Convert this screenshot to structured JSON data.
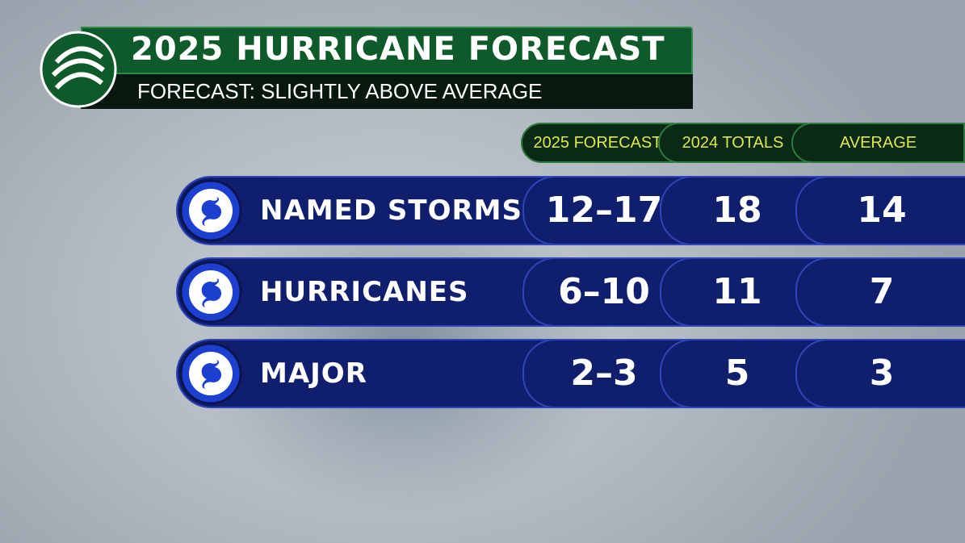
{
  "header": {
    "title": "2025 HURRICANE FORECAST",
    "subtitle": "FORECAST: SLIGHTLY ABOVE AVERAGE"
  },
  "table": {
    "columns": [
      "2025 FORECAST",
      "2024 TOTALS",
      "AVERAGE"
    ],
    "rows": [
      {
        "label": "NAMED STORMS",
        "values": [
          "12–17",
          18,
          14
        ]
      },
      {
        "label": "HURRICANES",
        "values": [
          "6–10",
          11,
          7
        ]
      },
      {
        "label": "MAJOR",
        "values": [
          "2–3",
          5,
          3
        ]
      }
    ]
  }
}
